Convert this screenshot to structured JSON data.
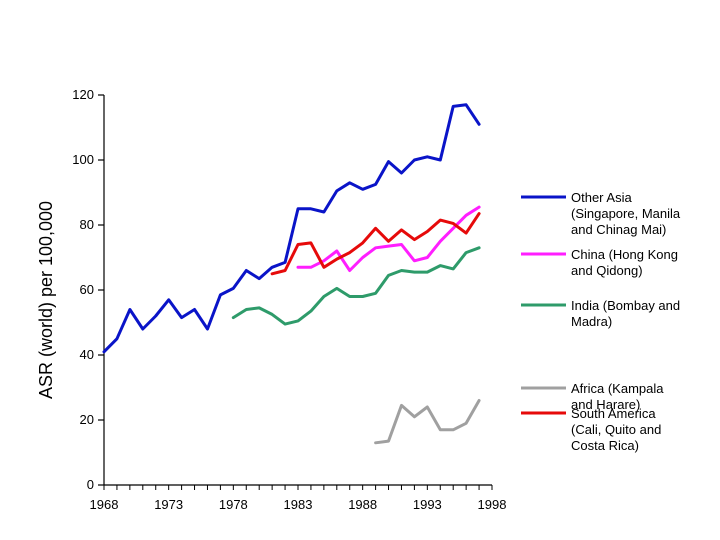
{
  "chart_data": {
    "type": "line",
    "title": "",
    "xlabel": "",
    "ylabel": "ASR (world) per 100,000",
    "xlim": [
      1968,
      1998
    ],
    "ylim": [
      0,
      120
    ],
    "x_ticks": [
      1968,
      1973,
      1978,
      1983,
      1988,
      1993,
      1998
    ],
    "y_ticks": [
      0,
      20,
      40,
      60,
      80,
      100,
      120
    ],
    "x_tick_labels": [
      "1968",
      "1973",
      "1978",
      "1983",
      "1988",
      "1993",
      "1998"
    ],
    "y_tick_labels": [
      "0",
      "20",
      "40",
      "60",
      "80",
      "100",
      "120"
    ],
    "grid": false,
    "legend_position": "right",
    "series": [
      {
        "name": "Other Asia (Singapore, Manila and Chinag Mai)",
        "legend_lines": [
          "Other Asia",
          "(Singapore, Manila",
          "and Chinag Mai)"
        ],
        "color": "#0a14c8",
        "x": [
          1968,
          1969,
          1970,
          1971,
          1972,
          1973,
          1974,
          1975,
          1976,
          1977,
          1978,
          1979,
          1980,
          1981,
          1982,
          1983,
          1984,
          1985,
          1986,
          1987,
          1988,
          1989,
          1990,
          1991,
          1992,
          1993,
          1994,
          1995,
          1996,
          1997
        ],
        "y": [
          41,
          45,
          54,
          48,
          52,
          57,
          51.5,
          54,
          48,
          58.5,
          60.5,
          66,
          63.5,
          67,
          68.5,
          85,
          85,
          84,
          90.5,
          93,
          91,
          92.5,
          99.5,
          96,
          100,
          101,
          100,
          116.5,
          117,
          111
        ]
      },
      {
        "name": "China (Hong Kong and Qidong)",
        "legend_lines": [
          "China (Hong Kong",
          "and Qidong)"
        ],
        "color": "#ff1eff",
        "x": [
          1983,
          1984,
          1985,
          1986,
          1987,
          1988,
          1989,
          1990,
          1991,
          1992,
          1993,
          1994,
          1995,
          1996,
          1997
        ],
        "y": [
          67,
          67,
          69,
          72,
          66,
          70,
          73,
          73.5,
          74,
          69,
          70,
          75,
          79,
          83,
          85.5
        ]
      },
      {
        "name": "India (Bombay and Madra)",
        "legend_lines": [
          "India (Bombay and",
          "Madra)"
        ],
        "color": "#2e9b6a",
        "x": [
          1978,
          1979,
          1980,
          1981,
          1982,
          1983,
          1984,
          1985,
          1986,
          1987,
          1988,
          1989,
          1990,
          1991,
          1992,
          1993,
          1994,
          1995,
          1996,
          1997
        ],
        "y": [
          51.5,
          54,
          54.5,
          52.5,
          49.5,
          50.5,
          53.5,
          58,
          60.5,
          58,
          58,
          59,
          64.5,
          66,
          65.5,
          65.5,
          67.5,
          66.5,
          71.5,
          73
        ]
      },
      {
        "name": "Africa (Kampala and Harare)",
        "legend_lines": [
          "Africa (Kampala",
          "and Harare)"
        ],
        "color": "#a0a0a0",
        "x": [
          1989,
          1990,
          1991,
          1992,
          1993,
          1994,
          1995,
          1996,
          1997
        ],
        "y": [
          13,
          13.5,
          24.5,
          21,
          24,
          17,
          17,
          19,
          26
        ]
      },
      {
        "name": "South America (Cali, Quito and Costa Rica)",
        "legend_lines": [
          "South America",
          "(Cali, Quito and",
          "Costa Rica)"
        ],
        "color": "#e60a0a",
        "x": [
          1981,
          1982,
          1983,
          1984,
          1985,
          1986,
          1987,
          1988,
          1989,
          1990,
          1991,
          1992,
          1993,
          1994,
          1995,
          1996,
          1997
        ],
        "y": [
          65,
          66,
          74,
          74.5,
          67,
          69.5,
          71.5,
          74.5,
          79,
          75,
          78.5,
          75.5,
          78,
          81.5,
          80.5,
          77.5,
          83.5
        ]
      }
    ]
  }
}
